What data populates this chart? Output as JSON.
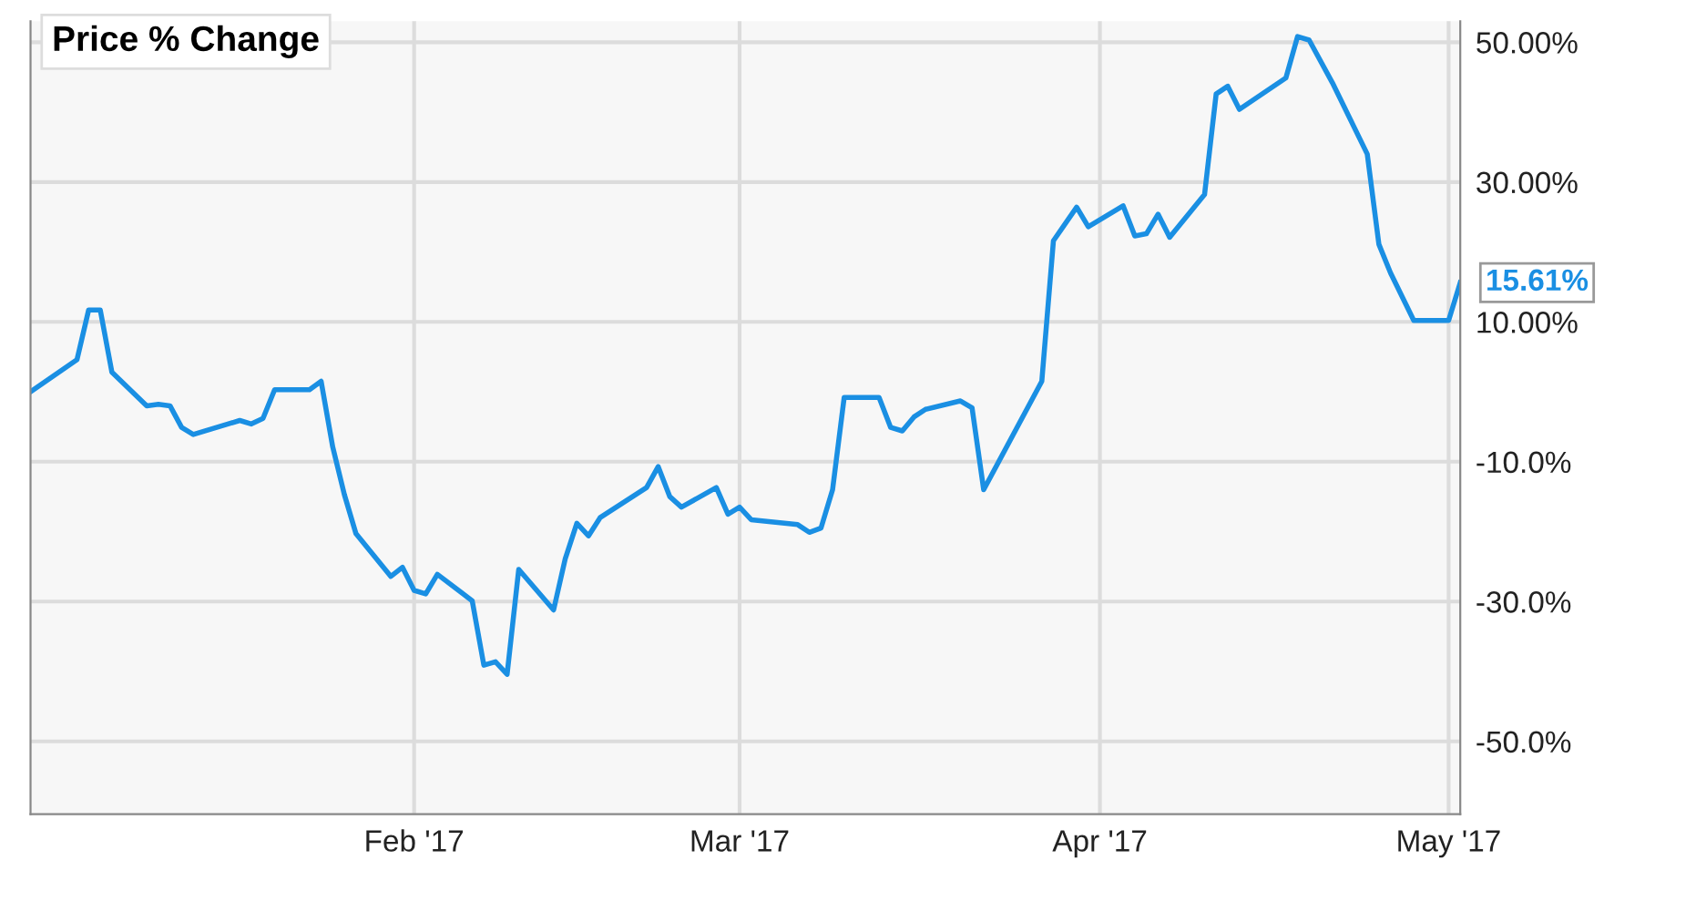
{
  "chart_data": {
    "type": "line",
    "title": "Price % Change",
    "x": [
      "2016-12-30",
      "2017-01-03",
      "2017-01-04",
      "2017-01-05",
      "2017-01-06",
      "2017-01-09",
      "2017-01-10",
      "2017-01-11",
      "2017-01-12",
      "2017-01-13",
      "2017-01-17",
      "2017-01-18",
      "2017-01-19",
      "2017-01-20",
      "2017-01-23",
      "2017-01-24",
      "2017-01-25",
      "2017-01-26",
      "2017-01-27",
      "2017-01-30",
      "2017-01-31",
      "2017-02-01",
      "2017-02-02",
      "2017-02-03",
      "2017-02-06",
      "2017-02-07",
      "2017-02-08",
      "2017-02-09",
      "2017-02-10",
      "2017-02-13",
      "2017-02-14",
      "2017-02-15",
      "2017-02-16",
      "2017-02-17",
      "2017-02-21",
      "2017-02-22",
      "2017-02-23",
      "2017-02-24",
      "2017-02-27",
      "2017-02-28",
      "2017-03-01",
      "2017-03-02",
      "2017-03-06",
      "2017-03-07",
      "2017-03-08",
      "2017-03-09",
      "2017-03-10",
      "2017-03-13",
      "2017-03-14",
      "2017-03-15",
      "2017-03-16",
      "2017-03-17",
      "2017-03-20",
      "2017-03-21",
      "2017-03-22",
      "2017-03-27",
      "2017-03-28",
      "2017-03-30",
      "2017-03-31",
      "2017-04-03",
      "2017-04-04",
      "2017-04-05",
      "2017-04-06",
      "2017-04-07",
      "2017-04-10",
      "2017-04-11",
      "2017-04-12",
      "2017-04-13",
      "2017-04-17",
      "2017-04-18",
      "2017-04-19",
      "2017-04-21",
      "2017-04-24",
      "2017-04-25",
      "2017-04-26",
      "2017-04-28",
      "2017-05-01",
      "2017-05-02"
    ],
    "series": [
      {
        "color": "#1a8fe3",
        "values": [
          0.0,
          4.6,
          11.7,
          11.7,
          2.8,
          -2.0,
          -1.8,
          -2.0,
          -5.1,
          -6.1,
          -4.1,
          -4.6,
          -3.8,
          0.3,
          0.3,
          1.5,
          -7.9,
          -14.7,
          -20.3,
          -26.4,
          -25.1,
          -28.4,
          -28.9,
          -26.1,
          -29.9,
          -39.1,
          -38.6,
          -40.4,
          -25.4,
          -31.2,
          -23.9,
          -18.8,
          -20.6,
          -18.0,
          -13.7,
          -10.7,
          -15.0,
          -16.5,
          -13.7,
          -17.5,
          -16.5,
          -18.3,
          -19.0,
          -20.1,
          -19.5,
          -14.0,
          -0.8,
          -0.8,
          -5.1,
          -5.6,
          -3.6,
          -2.5,
          -1.3,
          -2.3,
          -14.0,
          1.5,
          21.6,
          26.4,
          23.6,
          26.6,
          22.3,
          22.6,
          25.4,
          22.1,
          28.2,
          42.6,
          43.7,
          40.4,
          44.9,
          50.8,
          50.3,
          44.2,
          34.0,
          21.1,
          17.0,
          10.2,
          10.2,
          15.61
        ]
      }
    ],
    "annotations": [
      {
        "text": "15.61%",
        "x": "2017-05-02",
        "y": 15.61
      }
    ],
    "xlim": [
      "2016-12-30",
      "2017-05-02"
    ],
    "xticks": [
      {
        "value": "2017-02-01",
        "label": "Feb '17"
      },
      {
        "value": "2017-03-01",
        "label": "Mar '17"
      },
      {
        "value": "2017-04-01",
        "label": "Apr '17"
      },
      {
        "value": "2017-05-01",
        "label": "May '17"
      }
    ],
    "ylim": [
      -60.4,
      53
    ],
    "yticks": [
      {
        "value": 50,
        "label": "50.00%"
      },
      {
        "value": 30,
        "label": "30.00%"
      },
      {
        "value": 10,
        "label": "10.00%"
      },
      {
        "value": -10,
        "label": "-10.0%"
      },
      {
        "value": -30,
        "label": "-30.0%"
      },
      {
        "value": -50,
        "label": "-50.0%"
      }
    ],
    "grid": true,
    "marker": "none",
    "line_style": "solid"
  }
}
